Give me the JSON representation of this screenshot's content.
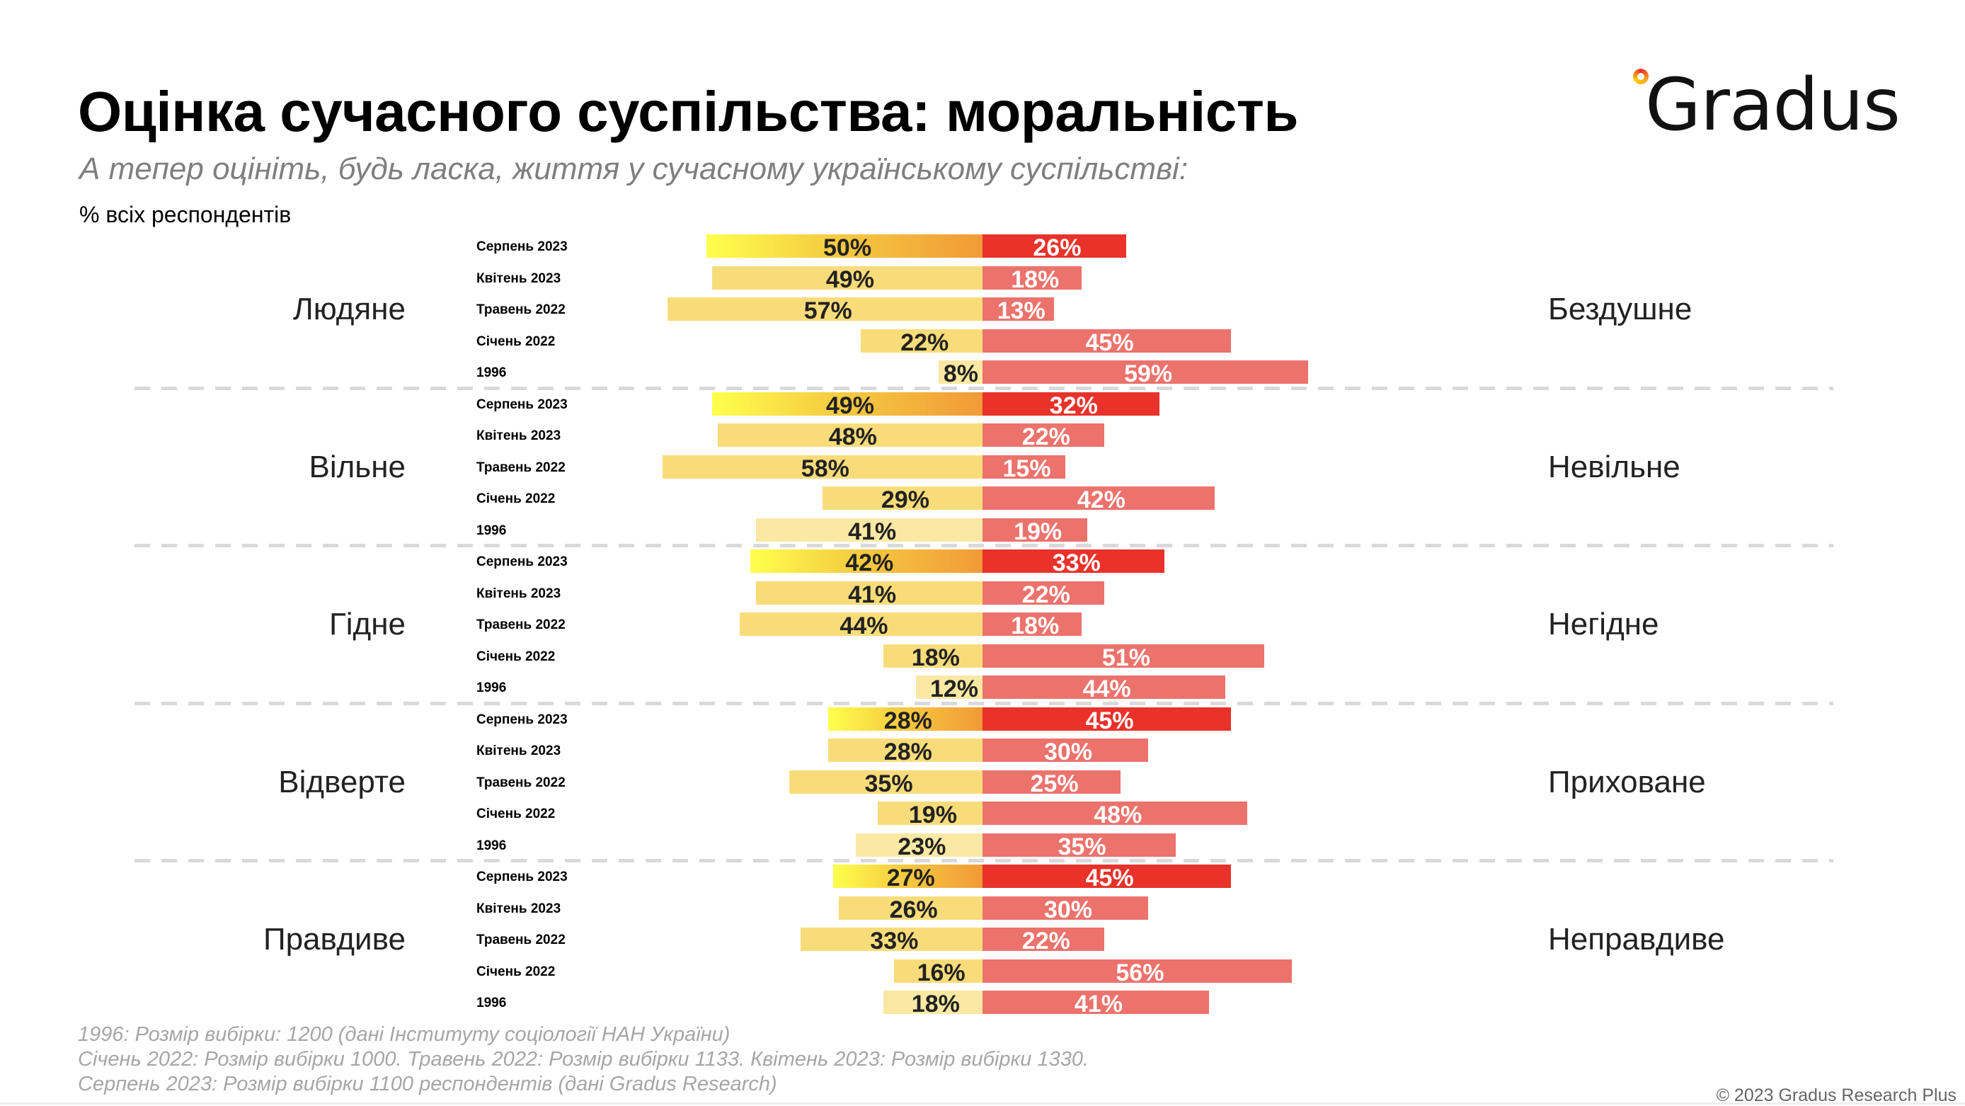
{
  "header": {
    "title": "Оцінка сучасного суспільства: моральність",
    "subtitle": "А тепер оцініть, будь ласка, життя у сучасному українському суспільстві:",
    "unit_note": "% всіх респондентів"
  },
  "logo": {
    "text": "Gradus",
    "icon": "orange-ring-icon"
  },
  "colors": {
    "left_latest_gradient": [
      "#ffff4d",
      "#f6d142",
      "#f19a37"
    ],
    "left_default": "#f9dc7a",
    "left_1996": "#fae8a3",
    "right_latest": "#e8322a",
    "right_default": "#ec726c",
    "separator": "#d9d9d9"
  },
  "chart_data": {
    "type": "bar",
    "orientation": "horizontal-diverging",
    "title": "Оцінка сучасного суспільства: моральність",
    "subtitle": "А тепер оцініть, будь ласка, життя у сучасному українському суспільстві:",
    "unit": "% всіх респондентів",
    "periods": [
      "Серпень 2023",
      "Квітень 2023",
      "Травень 2022",
      "Січень 2022",
      "1996"
    ],
    "groups": [
      {
        "left_label": "Людяне",
        "right_label": "Бездушне",
        "left_values": [
          50,
          49,
          57,
          22,
          8
        ],
        "right_values": [
          26,
          18,
          13,
          45,
          59
        ]
      },
      {
        "left_label": "Вільне",
        "right_label": "Невільне",
        "left_values": [
          49,
          48,
          58,
          29,
          41
        ],
        "right_values": [
          32,
          22,
          15,
          42,
          19
        ]
      },
      {
        "left_label": "Гідне",
        "right_label": "Негідне",
        "left_values": [
          42,
          41,
          44,
          18,
          12
        ],
        "right_values": [
          33,
          22,
          18,
          51,
          44
        ]
      },
      {
        "left_label": "Відверте",
        "right_label": "Приховане",
        "left_values": [
          28,
          28,
          35,
          19,
          23
        ],
        "right_values": [
          45,
          30,
          25,
          48,
          35
        ]
      },
      {
        "left_label": "Правдиве",
        "right_label": "Неправдиве",
        "left_values": [
          27,
          26,
          33,
          16,
          18
        ],
        "right_values": [
          45,
          30,
          22,
          56,
          41
        ]
      }
    ],
    "value_suffix": "%",
    "xlim": [
      -60,
      60
    ],
    "grid": false,
    "legend": "none"
  },
  "footer": {
    "notes": [
      "1996: Розмір вибірки: 1200 (дані Інституту соціології НАН України)",
      "Січень 2022: Розмір вибірки 1000. Травень 2022: Розмір вибірки 1133. Квітень 2023: Розмір вибірки 1330.",
      "Серпень 2023: Розмір вибірки 1100 респондентів (дані Gradus Research)"
    ],
    "copyright": "© 2023 Gradus Research Plus"
  }
}
